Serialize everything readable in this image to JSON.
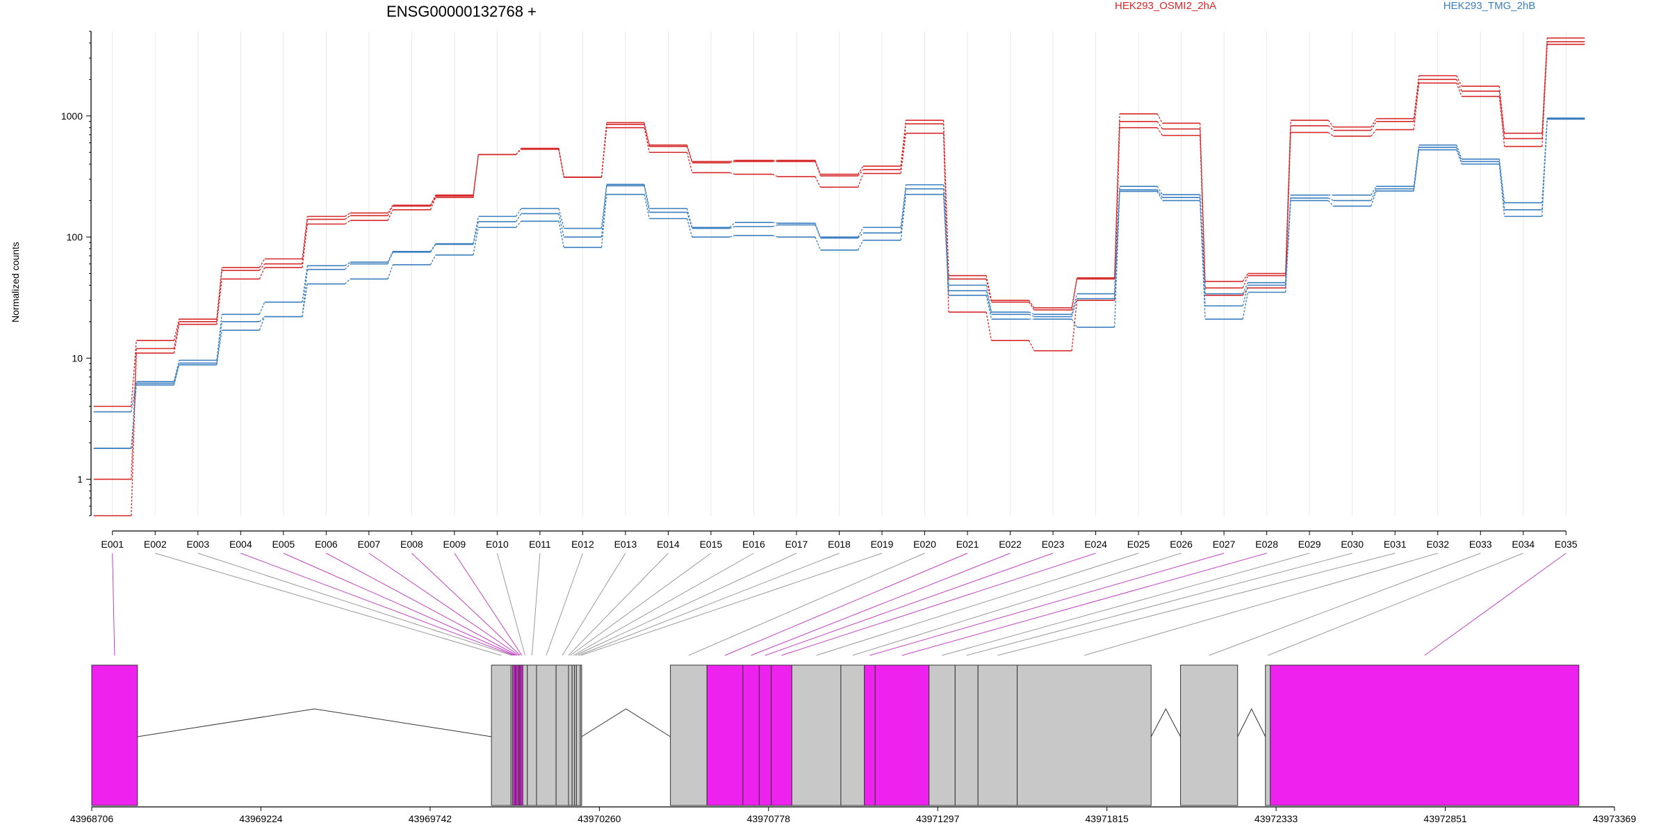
{
  "chart_data": {
    "type": "line",
    "title": "ENSG00000132768 +",
    "ylabel": "Normalized counts",
    "xlabel": "",
    "y_scale": "log",
    "ylim": [
      0.5,
      5000
    ],
    "y_ticks": [
      {
        "value": 1,
        "label": "1"
      },
      {
        "value": 10,
        "label": "10"
      },
      {
        "value": 100,
        "label": "100"
      },
      {
        "value": 1000,
        "label": "1000"
      }
    ],
    "legend_placement": "top",
    "grid": "vertical",
    "categories": [
      "E001",
      "E002",
      "E003",
      "E004",
      "E005",
      "E006",
      "E007",
      "E008",
      "E009",
      "E010",
      "E011",
      "E012",
      "E013",
      "E014",
      "E015",
      "E016",
      "E017",
      "E018",
      "E019",
      "E020",
      "E021",
      "E022",
      "E023",
      "E024",
      "E025",
      "E026",
      "E027",
      "E028",
      "E029",
      "E030",
      "E031",
      "E032",
      "E033",
      "E034",
      "E035"
    ],
    "series": [
      {
        "name": "HEK293_OSMI2_2hA",
        "color": "#d62728",
        "values": [
          4,
          14,
          21,
          56,
          66,
          148,
          158,
          183,
          222,
          480,
          540,
          312,
          880,
          575,
          420,
          430,
          430,
          330,
          385,
          920,
          48,
          30,
          26,
          46,
          1040,
          870,
          43,
          50,
          920,
          810,
          950,
          2150,
          1760,
          720,
          4400
        ]
      },
      {
        "name": "HEK293_OSMI2_2hA",
        "color": "#d62728",
        "values": [
          1,
          12,
          20,
          53,
          60,
          140,
          150,
          180,
          218,
          480,
          535,
          312,
          850,
          560,
          410,
          420,
          420,
          320,
          360,
          860,
          45,
          29,
          25,
          45,
          900,
          780,
          38,
          48,
          830,
          760,
          900,
          2000,
          1600,
          650,
          4100
        ]
      },
      {
        "name": "HEK293_OSMI2_2hA",
        "color": "#d62728",
        "values": [
          0.5,
          11,
          19,
          45,
          56,
          128,
          137,
          168,
          212,
          480,
          530,
          312,
          800,
          500,
          340,
          330,
          315,
          258,
          335,
          720,
          24,
          14,
          11.5,
          30,
          800,
          690,
          33,
          38,
          730,
          680,
          770,
          1870,
          1450,
          560,
          3900
        ]
      },
      {
        "name": "HEK293_TMG_2hB",
        "color": "#3a7ebf",
        "values": [
          3.6,
          6.4,
          9.6,
          23,
          29,
          58,
          62,
          76,
          88,
          148,
          172,
          118,
          272,
          172,
          120,
          132,
          130,
          100,
          120,
          270,
          40,
          24,
          23,
          34,
          262,
          224,
          34,
          42,
          222,
          222,
          262,
          575,
          440,
          192,
          960
        ]
      },
      {
        "name": "HEK293_TMG_2hB",
        "color": "#3a7ebf",
        "values": [
          1.8,
          6.2,
          9.1,
          20,
          22,
          54,
          60,
          75,
          87,
          134,
          156,
          100,
          265,
          160,
          118,
          122,
          126,
          98,
          108,
          250,
          36,
          23,
          22,
          31,
          245,
          212,
          27,
          40,
          210,
          200,
          250,
          550,
          420,
          168,
          950
        ]
      },
      {
        "name": "HEK293_TMG_2hB",
        "color": "#3a7ebf",
        "values": [
          1.8,
          6,
          8.8,
          17,
          22,
          41,
          45,
          59,
          71,
          120,
          135,
          82,
          225,
          142,
          100,
          103,
          100,
          78,
          94,
          225,
          33,
          21,
          21,
          18,
          238,
          200,
          21,
          35,
          200,
          180,
          240,
          525,
          400,
          148,
          940
        ]
      }
    ],
    "legend": [
      {
        "label": "HEK293_OSMI2_2hA",
        "color": "#d62728"
      },
      {
        "label": "HEK293_TMG_2hB",
        "color": "#3a7ebf"
      }
    ],
    "gene_model": {
      "genomic_axis_ticks": [
        "43968706",
        "43969224",
        "43969742",
        "43970260",
        "43970778",
        "43971297",
        "43971815",
        "43972333",
        "43972851",
        "43973369"
      ],
      "range": [
        43968706,
        43973369
      ],
      "exon_colors": {
        "significant": "#ee22ee",
        "not_significant": "#c8c8c8"
      },
      "exons": [
        {
          "id": "E001",
          "start": 43968706,
          "end": 43968846,
          "significant": true
        },
        {
          "id": "E002",
          "start": 43969930,
          "end": 43969990,
          "significant": false
        },
        {
          "id": "E003",
          "start": 43969990,
          "end": 43969995,
          "significant": false
        },
        {
          "id": "E004",
          "start": 43969995,
          "end": 43970002,
          "significant": true
        },
        {
          "id": "E005",
          "start": 43970002,
          "end": 43970005,
          "significant": true
        },
        {
          "id": "E006",
          "start": 43970005,
          "end": 43970012,
          "significant": true
        },
        {
          "id": "E007",
          "start": 43970012,
          "end": 43970016,
          "significant": true
        },
        {
          "id": "E008",
          "start": 43970016,
          "end": 43970020,
          "significant": true
        },
        {
          "id": "E009",
          "start": 43970020,
          "end": 43970026,
          "significant": true
        },
        {
          "id": "E010",
          "start": 43970026,
          "end": 43970040,
          "significant": false
        },
        {
          "id": "E011",
          "start": 43970040,
          "end": 43970068,
          "significant": false
        },
        {
          "id": "E012",
          "start": 43970068,
          "end": 43970128,
          "significant": false
        },
        {
          "id": "E013",
          "start": 43970128,
          "end": 43970166,
          "significant": false
        },
        {
          "id": "E014",
          "start": 43970166,
          "end": 43970166,
          "significant": false
        },
        {
          "id": "E015",
          "start": 43970166,
          "end": 43970177,
          "significant": false
        },
        {
          "id": "E016",
          "start": 43970177,
          "end": 43970184,
          "significant": false
        },
        {
          "id": "E017",
          "start": 43970184,
          "end": 43970190,
          "significant": false
        },
        {
          "id": "E018",
          "start": 43970190,
          "end": 43970202,
          "significant": false
        },
        {
          "id": "E019",
          "start": 43970202,
          "end": 43970206,
          "significant": false
        },
        {
          "id": "E020",
          "start": 43970478,
          "end": 43970590,
          "significant": false
        },
        {
          "id": "E021",
          "start": 43970590,
          "end": 43970700,
          "significant": true
        },
        {
          "id": "E022",
          "start": 43970700,
          "end": 43970750,
          "significant": true
        },
        {
          "id": "E023",
          "start": 43970750,
          "end": 43970787,
          "significant": true
        },
        {
          "id": "E024",
          "start": 43970787,
          "end": 43970850,
          "significant": true
        },
        {
          "id": "E025",
          "start": 43970850,
          "end": 43971000,
          "significant": false
        },
        {
          "id": "E026",
          "start": 43971000,
          "end": 43971072,
          "significant": false
        },
        {
          "id": "E027",
          "start": 43971072,
          "end": 43971105,
          "significant": true
        },
        {
          "id": "E028",
          "start": 43971105,
          "end": 43971270,
          "significant": true
        },
        {
          "id": "E029",
          "start": 43971270,
          "end": 43971350,
          "significant": false
        },
        {
          "id": "E030",
          "start": 43971350,
          "end": 43971420,
          "significant": false
        },
        {
          "id": "E031",
          "start": 43971420,
          "end": 43971540,
          "significant": false
        },
        {
          "id": "E032",
          "start": 43971540,
          "end": 43971950,
          "significant": false
        },
        {
          "id": "E033",
          "start": 43972040,
          "end": 43972215,
          "significant": false
        },
        {
          "id": "E034",
          "start": 43972300,
          "end": 43972315,
          "significant": false
        },
        {
          "id": "E035",
          "start": 43972315,
          "end": 43973260,
          "significant": true
        }
      ]
    }
  }
}
